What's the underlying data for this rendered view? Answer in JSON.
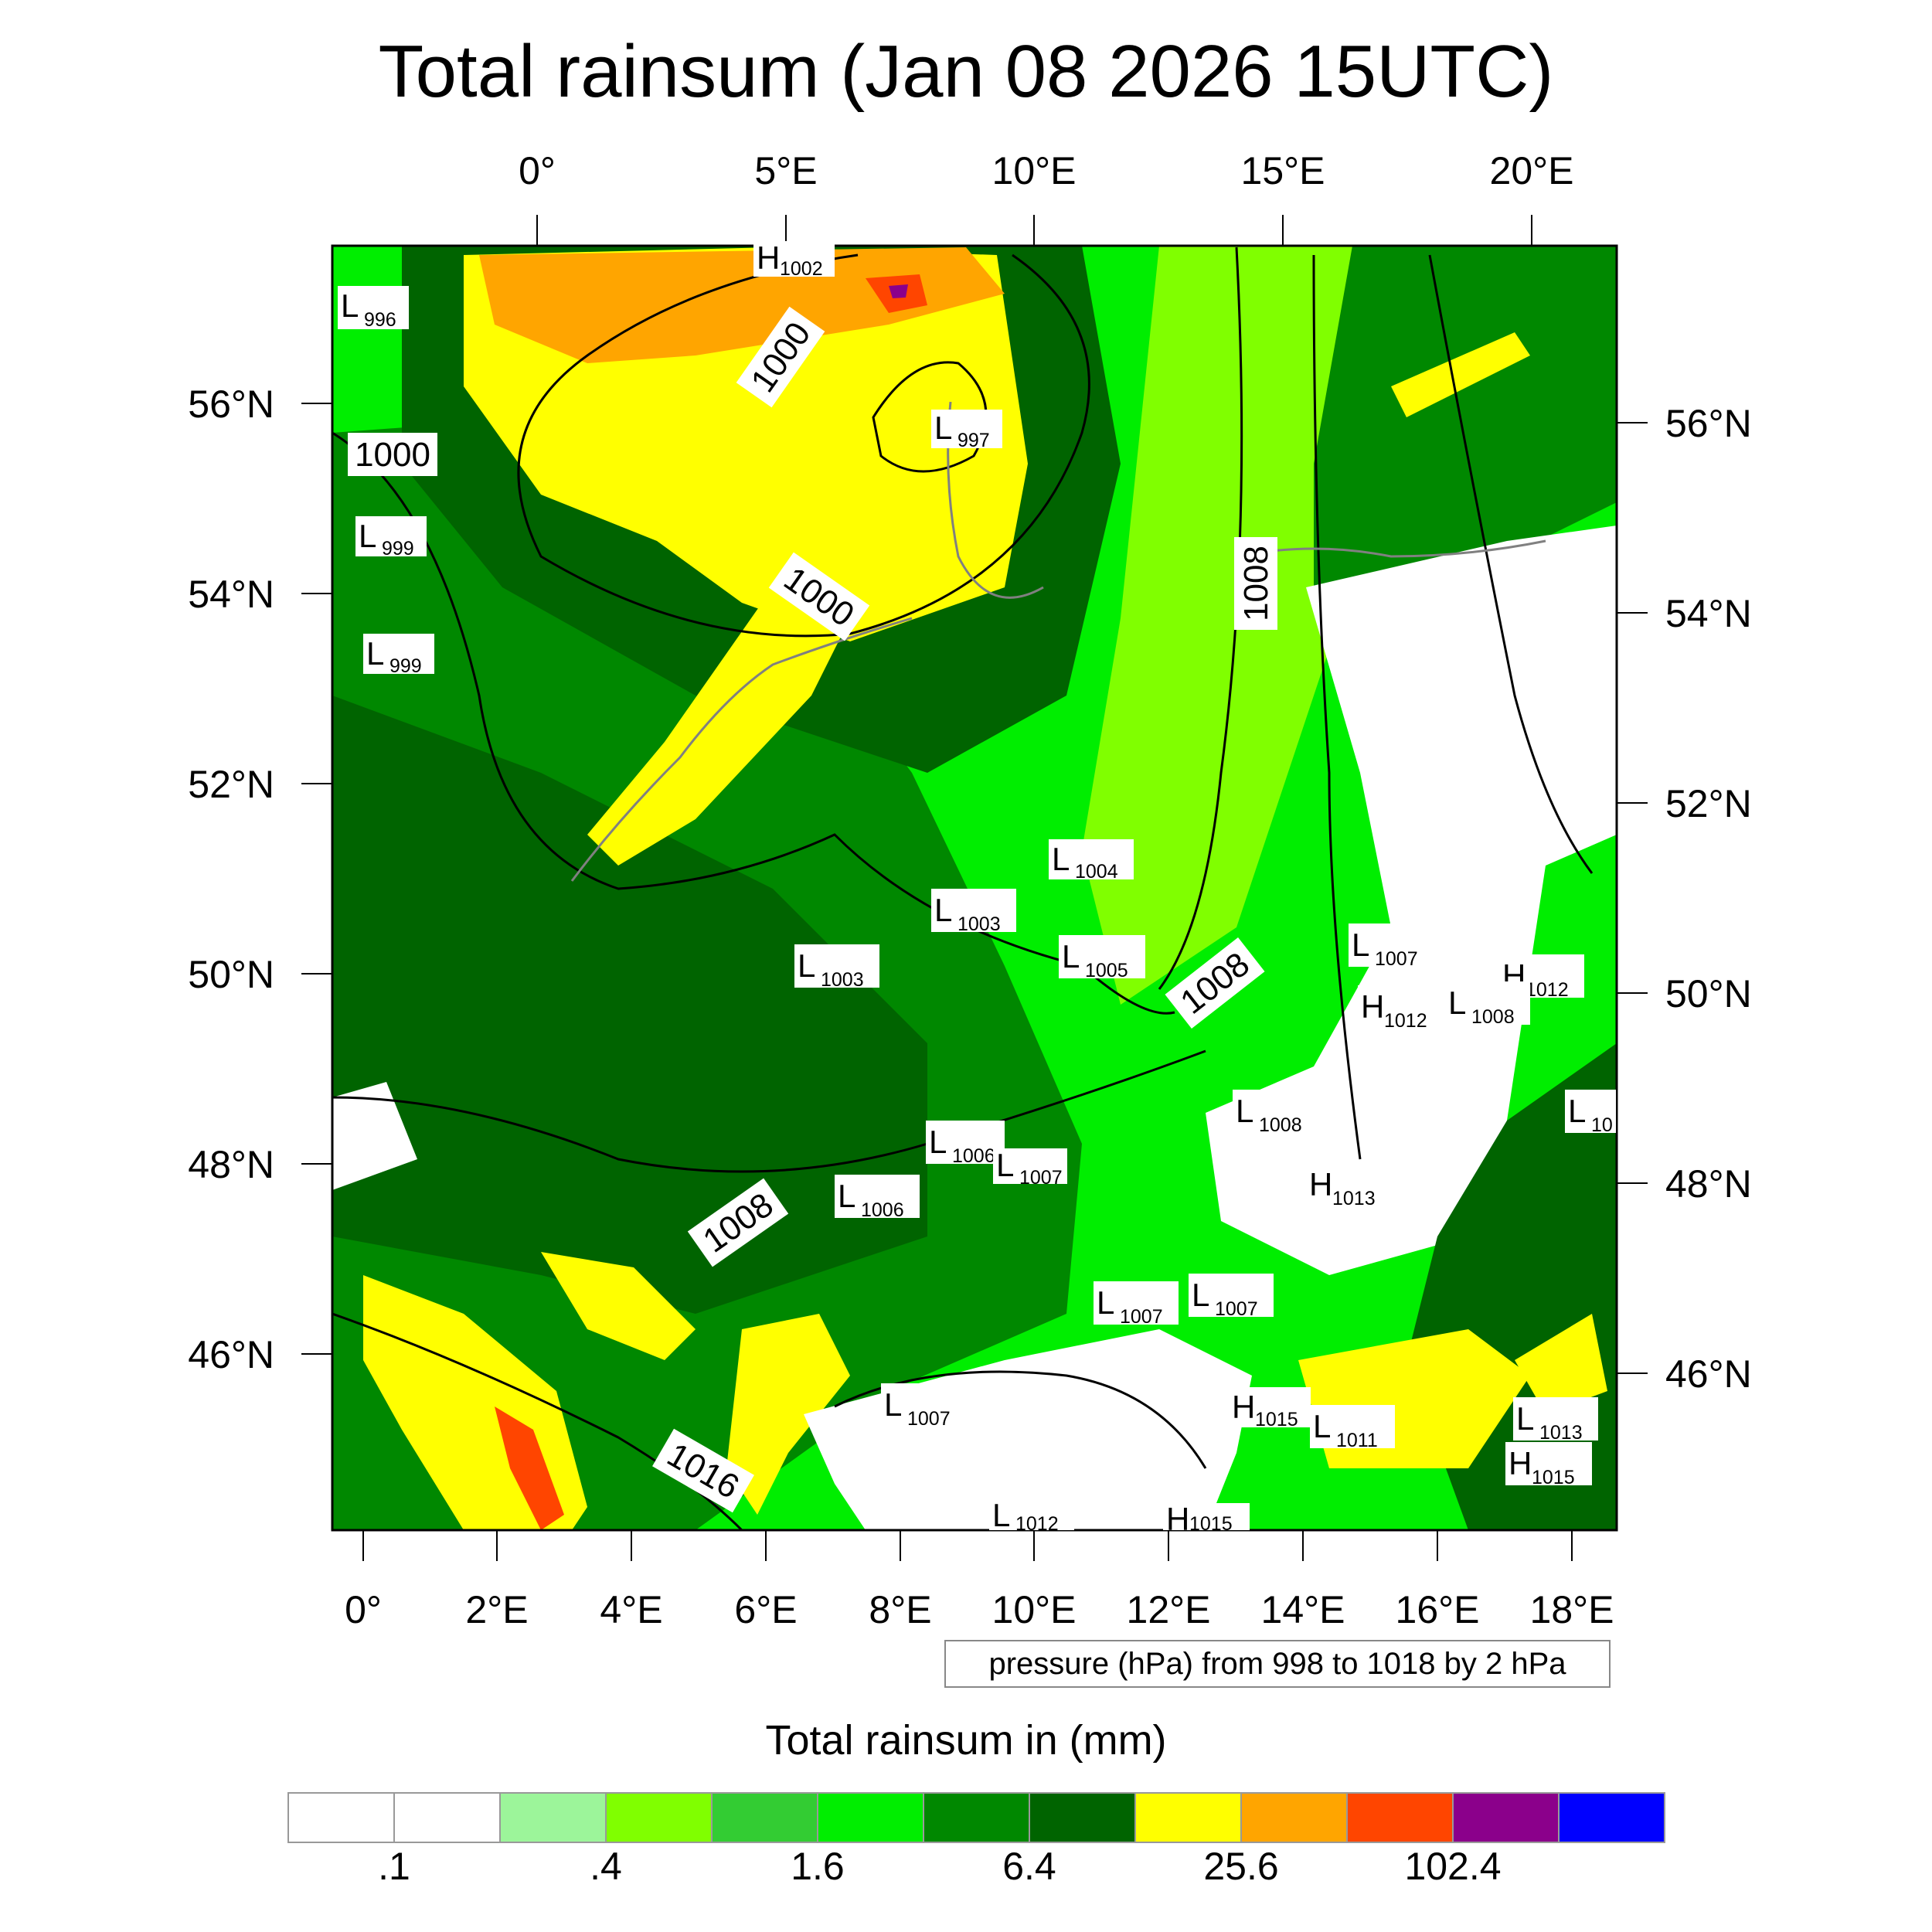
{
  "title": "Total rainsum (Jan 08 2026 15UTC)",
  "pressure_note": "pressure (hPa) from 998 to 1018 by 2 hPa",
  "legend_title": "Total rainsum in (mm)",
  "legend": {
    "colors": [
      "#ffffff",
      "#ffffff",
      "#9cf59a",
      "#80ff00",
      "#33cc33",
      "#00ee00",
      "#008800",
      "#006400",
      "#ffff00",
      "#ffa500",
      "#ff4500",
      "#8b008b",
      "#0000ff"
    ],
    "tick_labels": [
      ".1",
      ".4",
      "1.6",
      "6.4",
      "25.6",
      "102.4"
    ]
  },
  "axes": {
    "top": [
      "0°",
      "5°E",
      "10°E",
      "15°E",
      "20°E"
    ],
    "bottom": [
      "0°",
      "2°E",
      "4°E",
      "6°E",
      "8°E",
      "10°E",
      "12°E",
      "14°E",
      "16°E",
      "18°E"
    ],
    "left": [
      "56°N",
      "54°N",
      "52°N",
      "50°N",
      "48°N",
      "46°N"
    ],
    "right": [
      "56°N",
      "54°N",
      "52°N",
      "50°N",
      "48°N",
      "46°N"
    ]
  },
  "pressure_centers": [
    {
      "type": "H",
      "value": "1002"
    },
    {
      "type": "L",
      "value": "996"
    },
    {
      "type": "L",
      "value": "997"
    },
    {
      "type": "L",
      "value": "999"
    },
    {
      "type": "L",
      "value": "999"
    },
    {
      "type": "L",
      "value": "1004"
    },
    {
      "type": "L",
      "value": "1003"
    },
    {
      "type": "L",
      "value": "1003"
    },
    {
      "type": "L",
      "value": "1005"
    },
    {
      "type": "L",
      "value": "1007"
    },
    {
      "type": "H",
      "value": "1012"
    },
    {
      "type": "H",
      "value": "1012"
    },
    {
      "type": "L",
      "value": "1008"
    },
    {
      "type": "L",
      "value": "1008"
    },
    {
      "type": "L",
      "value": "10"
    },
    {
      "type": "L",
      "value": "1006"
    },
    {
      "type": "L",
      "value": "1007"
    },
    {
      "type": "L",
      "value": "1006"
    },
    {
      "type": "H",
      "value": "1013"
    },
    {
      "type": "L",
      "value": "1007"
    },
    {
      "type": "L",
      "value": "1007"
    },
    {
      "type": "L",
      "value": "1007"
    },
    {
      "type": "H",
      "value": "1015"
    },
    {
      "type": "L",
      "value": "1011"
    },
    {
      "type": "L",
      "value": "1013"
    },
    {
      "type": "H",
      "value": "1015"
    },
    {
      "type": "L",
      "value": "1012"
    },
    {
      "type": "H",
      "value": "1015"
    }
  ],
  "isobar_labels": [
    "1000",
    "1000",
    "1000",
    "1008",
    "1008",
    "1008",
    "1016"
  ]
}
